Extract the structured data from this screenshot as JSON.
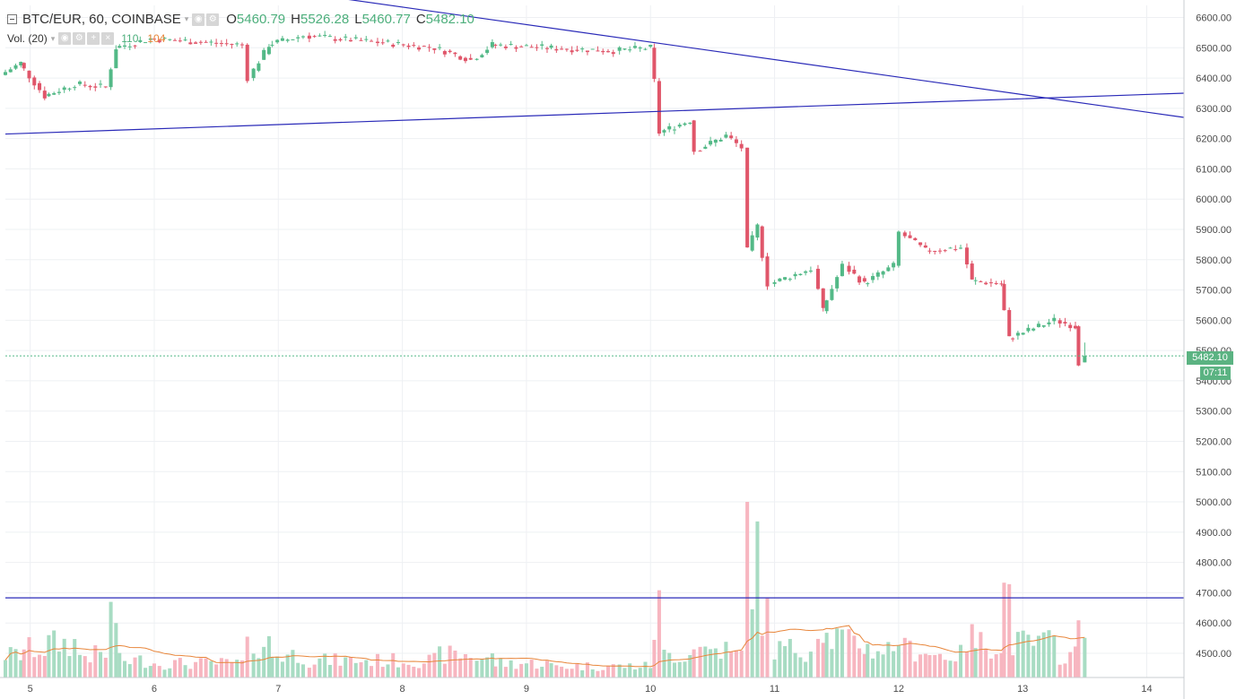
{
  "legend": {
    "symbol": "BTC/EUR, 60, COINBASE",
    "o_label": "O",
    "o_value": "5460.79",
    "h_label": "H",
    "h_value": "5526.28",
    "l_label": "L",
    "l_value": "5460.77",
    "c_label": "C",
    "c_value": "5482.10",
    "volume_label": "Vol. (20)",
    "volume_value": "110",
    "volume_ma": "104"
  },
  "badges": {
    "last_price": "5482.10",
    "countdown": "07:11"
  },
  "colors": {
    "up": "#53b987",
    "down": "#e0566a",
    "vol_up": "#a8dcc3",
    "vol_down": "#f7b6c0",
    "trendline": "#2a2ab8",
    "volume_ma": "#e8863b",
    "grid": "#eef0f3"
  },
  "chart_data": {
    "type": "candlestick",
    "title": "BTC/EUR, 60, COINBASE",
    "y_axis": {
      "min": 4420,
      "max": 6640,
      "ticks": [
        "6600.00",
        "6500.00",
        "6400.00",
        "6300.00",
        "6200.00",
        "6100.00",
        "6000.00",
        "5900.00",
        "5800.00",
        "5700.00",
        "5600.00",
        "5500.00",
        "5400.00",
        "5300.00",
        "5200.00",
        "5100.00",
        "5000.00",
        "4900.00",
        "4800.00",
        "4700.00",
        "4600.00",
        "4500.00"
      ]
    },
    "x_axis": {
      "ticks": [
        "5",
        "6",
        "7",
        "8",
        "9",
        "10",
        "11",
        "12",
        "13",
        "14"
      ]
    },
    "hours_per_day": 24,
    "segments": [
      {
        "start": 4.8,
        "end": 4.95,
        "from": 6410,
        "to": 6450,
        "vol": 8
      },
      {
        "start": 4.95,
        "end": 5.15,
        "from": 6450,
        "to": 6340,
        "vol": 10
      },
      {
        "start": 5.15,
        "end": 5.4,
        "from": 6340,
        "to": 6380,
        "vol": 12
      },
      {
        "start": 5.4,
        "end": 5.65,
        "from": 6380,
        "to": 6370,
        "vol": 8
      },
      {
        "start": 5.65,
        "end": 5.72,
        "from": 6370,
        "to": 6500,
        "vol": 22
      },
      {
        "start": 5.72,
        "end": 6.0,
        "from": 6500,
        "to": 6530,
        "vol": 6
      },
      {
        "start": 6.0,
        "end": 6.75,
        "from": 6530,
        "to": 6510,
        "vol": 5
      },
      {
        "start": 6.75,
        "end": 6.8,
        "from": 6510,
        "to": 6400,
        "vol": 10
      },
      {
        "start": 6.8,
        "end": 6.95,
        "from": 6400,
        "to": 6510,
        "vol": 12
      },
      {
        "start": 6.95,
        "end": 7.25,
        "from": 6510,
        "to": 6540,
        "vol": 8
      },
      {
        "start": 7.25,
        "end": 7.8,
        "from": 6540,
        "to": 6520,
        "vol": 6
      },
      {
        "start": 7.8,
        "end": 8.3,
        "from": 6520,
        "to": 6500,
        "vol": 6
      },
      {
        "start": 8.3,
        "end": 8.6,
        "from": 6500,
        "to": 6460,
        "vol": 8
      },
      {
        "start": 8.6,
        "end": 8.75,
        "from": 6460,
        "to": 6510,
        "vol": 7
      },
      {
        "start": 8.75,
        "end": 9.2,
        "from": 6510,
        "to": 6500,
        "vol": 5
      },
      {
        "start": 9.2,
        "end": 9.75,
        "from": 6500,
        "to": 6490,
        "vol": 4
      },
      {
        "start": 9.75,
        "end": 10.03,
        "from": 6490,
        "to": 6500,
        "vol": 4
      },
      {
        "start": 10.03,
        "end": 10.07,
        "from": 6500,
        "to": 6390,
        "vol": 18
      },
      {
        "start": 10.07,
        "end": 10.11,
        "from": 6390,
        "to": 6220,
        "vol": 24
      },
      {
        "start": 10.11,
        "end": 10.35,
        "from": 6220,
        "to": 6260,
        "vol": 8
      },
      {
        "start": 10.35,
        "end": 10.4,
        "from": 6260,
        "to": 6160,
        "vol": 14
      },
      {
        "start": 10.4,
        "end": 10.65,
        "from": 6160,
        "to": 6210,
        "vol": 10
      },
      {
        "start": 10.65,
        "end": 10.78,
        "from": 6210,
        "to": 6170,
        "vol": 8
      },
      {
        "start": 10.78,
        "end": 10.82,
        "from": 6170,
        "to": 5830,
        "vol": 60
      },
      {
        "start": 10.82,
        "end": 10.9,
        "from": 5830,
        "to": 5910,
        "vol": 40
      },
      {
        "start": 10.9,
        "end": 11.0,
        "from": 5910,
        "to": 5720,
        "vol": 22
      },
      {
        "start": 11.0,
        "end": 11.35,
        "from": 5720,
        "to": 5770,
        "vol": 10
      },
      {
        "start": 11.35,
        "end": 11.42,
        "from": 5770,
        "to": 5630,
        "vol": 20
      },
      {
        "start": 11.42,
        "end": 11.6,
        "from": 5630,
        "to": 5780,
        "vol": 14
      },
      {
        "start": 11.6,
        "end": 11.75,
        "from": 5780,
        "to": 5720,
        "vol": 12
      },
      {
        "start": 11.75,
        "end": 12.0,
        "from": 5720,
        "to": 5780,
        "vol": 10
      },
      {
        "start": 12.0,
        "end": 12.05,
        "from": 5780,
        "to": 5890,
        "vol": 16
      },
      {
        "start": 12.05,
        "end": 12.25,
        "from": 5890,
        "to": 5830,
        "vol": 10
      },
      {
        "start": 12.25,
        "end": 12.55,
        "from": 5830,
        "to": 5840,
        "vol": 8
      },
      {
        "start": 12.55,
        "end": 12.62,
        "from": 5840,
        "to": 5730,
        "vol": 14
      },
      {
        "start": 12.62,
        "end": 12.85,
        "from": 5730,
        "to": 5720,
        "vol": 12
      },
      {
        "start": 12.85,
        "end": 12.92,
        "from": 5720,
        "to": 5540,
        "vol": 30
      },
      {
        "start": 12.92,
        "end": 13.3,
        "from": 5540,
        "to": 5600,
        "vol": 12
      },
      {
        "start": 13.3,
        "end": 13.45,
        "from": 5600,
        "to": 5580,
        "vol": 8
      },
      {
        "start": 13.45,
        "end": 13.5,
        "from": 5580,
        "to": 5460,
        "vol": 20
      }
    ],
    "last_candle": {
      "open": 5460.79,
      "high": 5526.28,
      "low": 5460.77,
      "close": 5482.1,
      "volume": 110
    },
    "trendlines": [
      {
        "from": {
          "day": 7.47,
          "price": 6665
        },
        "to": {
          "day": 14.3,
          "price": 6270
        }
      },
      {
        "from": {
          "day": 4.8,
          "price": 6215
        },
        "to": {
          "day": 14.3,
          "price": 6350
        }
      }
    ],
    "horizontal_line": 4683,
    "last_price_line": 5482.1
  }
}
